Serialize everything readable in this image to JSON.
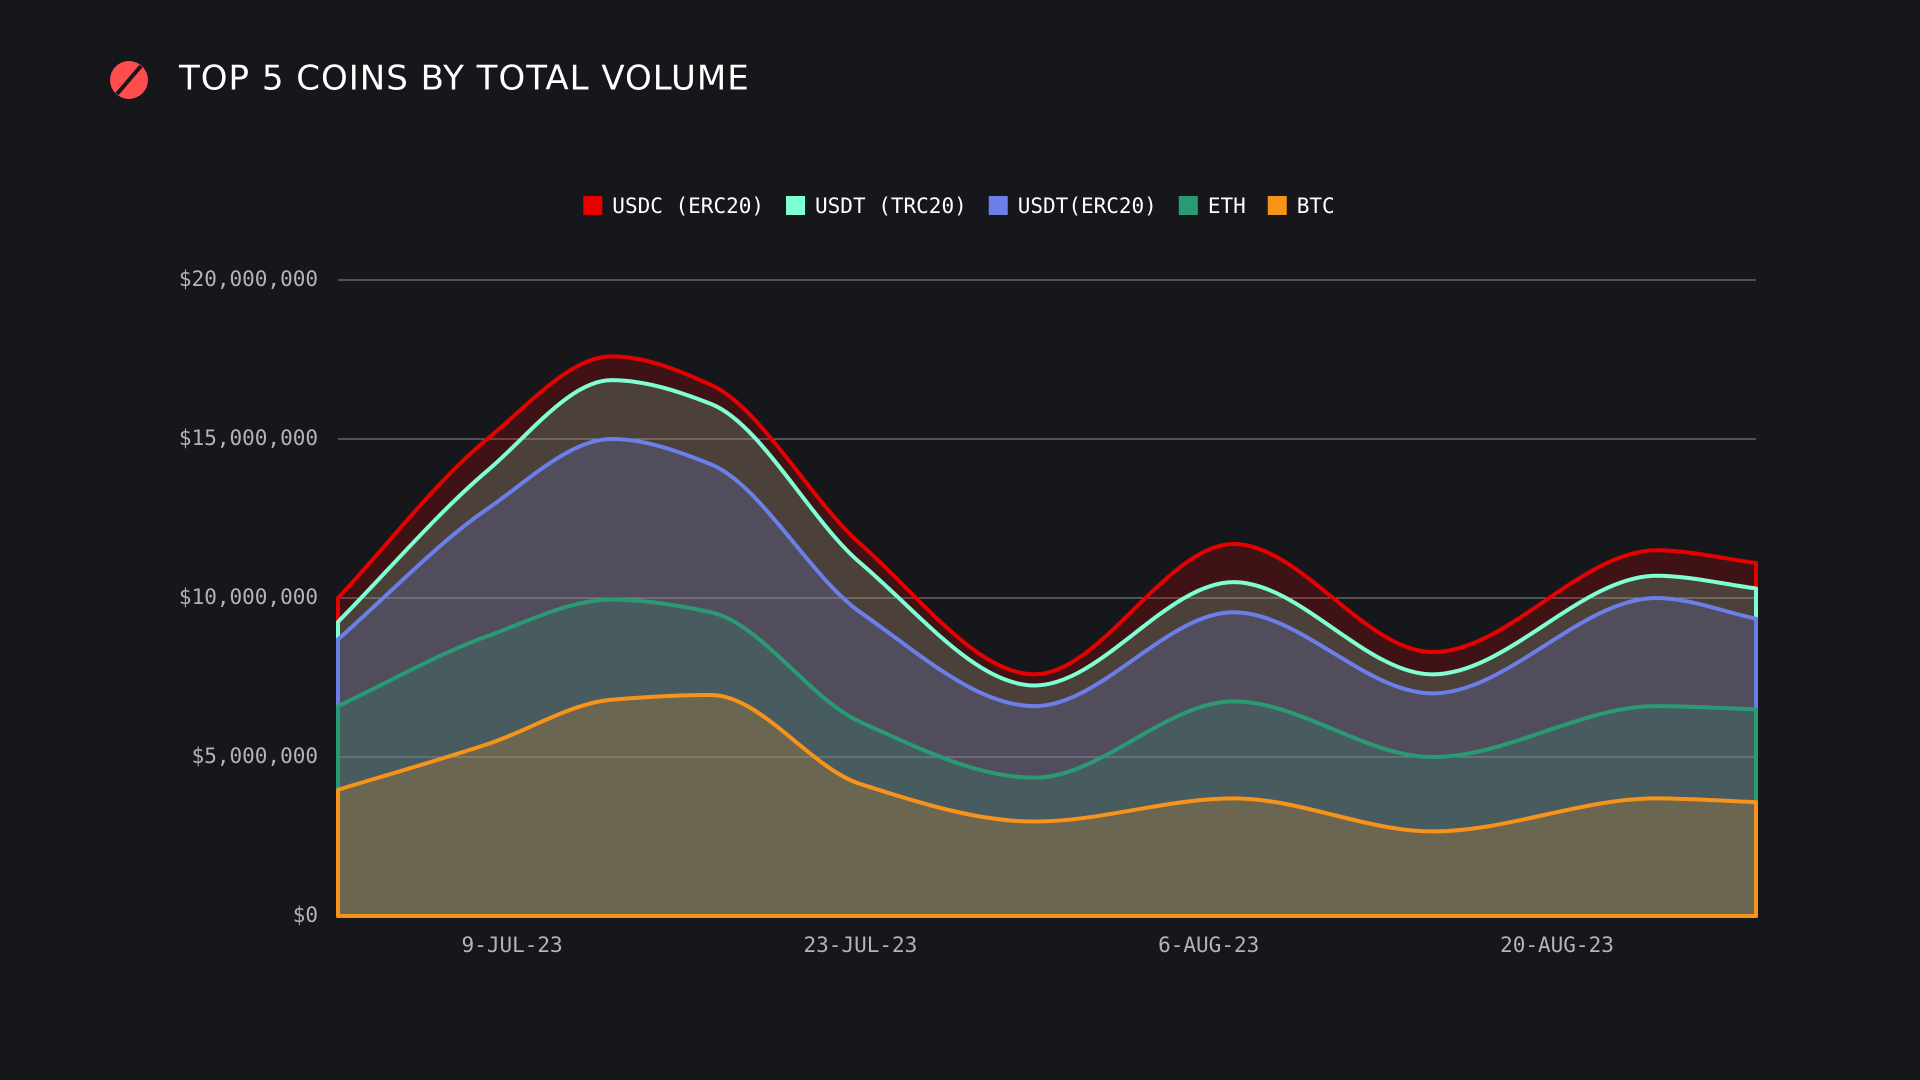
{
  "chart_data": {
    "type": "stacked-area",
    "title": "TOP 5 COINS BY TOTAL VOLUME",
    "x": [
      "2023-07-02",
      "2023-07-08",
      "2023-07-13",
      "2023-07-17",
      "2023-07-23",
      "2023-07-30",
      "2023-08-07",
      "2023-08-15",
      "2023-08-24",
      "2023-08-28"
    ],
    "series": [
      {
        "name": "USDC (ERC20)",
        "color": "#e60000",
        "values": [
          750000,
          1000000,
          750000,
          600000,
          600000,
          350000,
          1200000,
          700000,
          800000,
          800000
        ]
      },
      {
        "name": "USDT (TRC20)",
        "color": "#7fffd4",
        "values": [
          550000,
          1200000,
          1850000,
          1900000,
          1550000,
          650000,
          950000,
          600000,
          700000,
          950000
        ]
      },
      {
        "name": "USDT(ERC20)",
        "color": "#6b7fe8",
        "values": [
          2100000,
          4000000,
          5050000,
          4650000,
          3450000,
          2250000,
          2800000,
          2000000,
          3400000,
          2850000
        ]
      },
      {
        "name": "ETH",
        "color": "#2a9a72",
        "values": [
          2630000,
          3400000,
          3150000,
          2600000,
          1950000,
          1380000,
          3050000,
          2340000,
          2900000,
          2920000
        ]
      },
      {
        "name": "BTC",
        "color": "#f7931a",
        "values": [
          3970000,
          5400000,
          6800000,
          6950000,
          4150000,
          2970000,
          3700000,
          2660000,
          3700000,
          3580000
        ]
      }
    ],
    "xlim": [
      "2023-07-02",
      "2023-08-28"
    ],
    "xticks": [
      {
        "value": "2023-07-09",
        "label": "9-JUL-23"
      },
      {
        "value": "2023-07-23",
        "label": "23-JUL-23"
      },
      {
        "value": "2023-08-06",
        "label": "6-AUG-23"
      },
      {
        "value": "2023-08-20",
        "label": "20-AUG-23"
      }
    ],
    "ylim": [
      0,
      20000000
    ],
    "yticks": [
      {
        "value": 0,
        "label": "$0"
      },
      {
        "value": 5000000,
        "label": "$5,000,000"
      },
      {
        "value": 10000000,
        "label": "$10,000,000"
      },
      {
        "value": 15000000,
        "label": "$15,000,000"
      },
      {
        "value": 20000000,
        "label": "$20,000,000"
      }
    ],
    "grid": true,
    "stacked": true,
    "legend": "top"
  }
}
